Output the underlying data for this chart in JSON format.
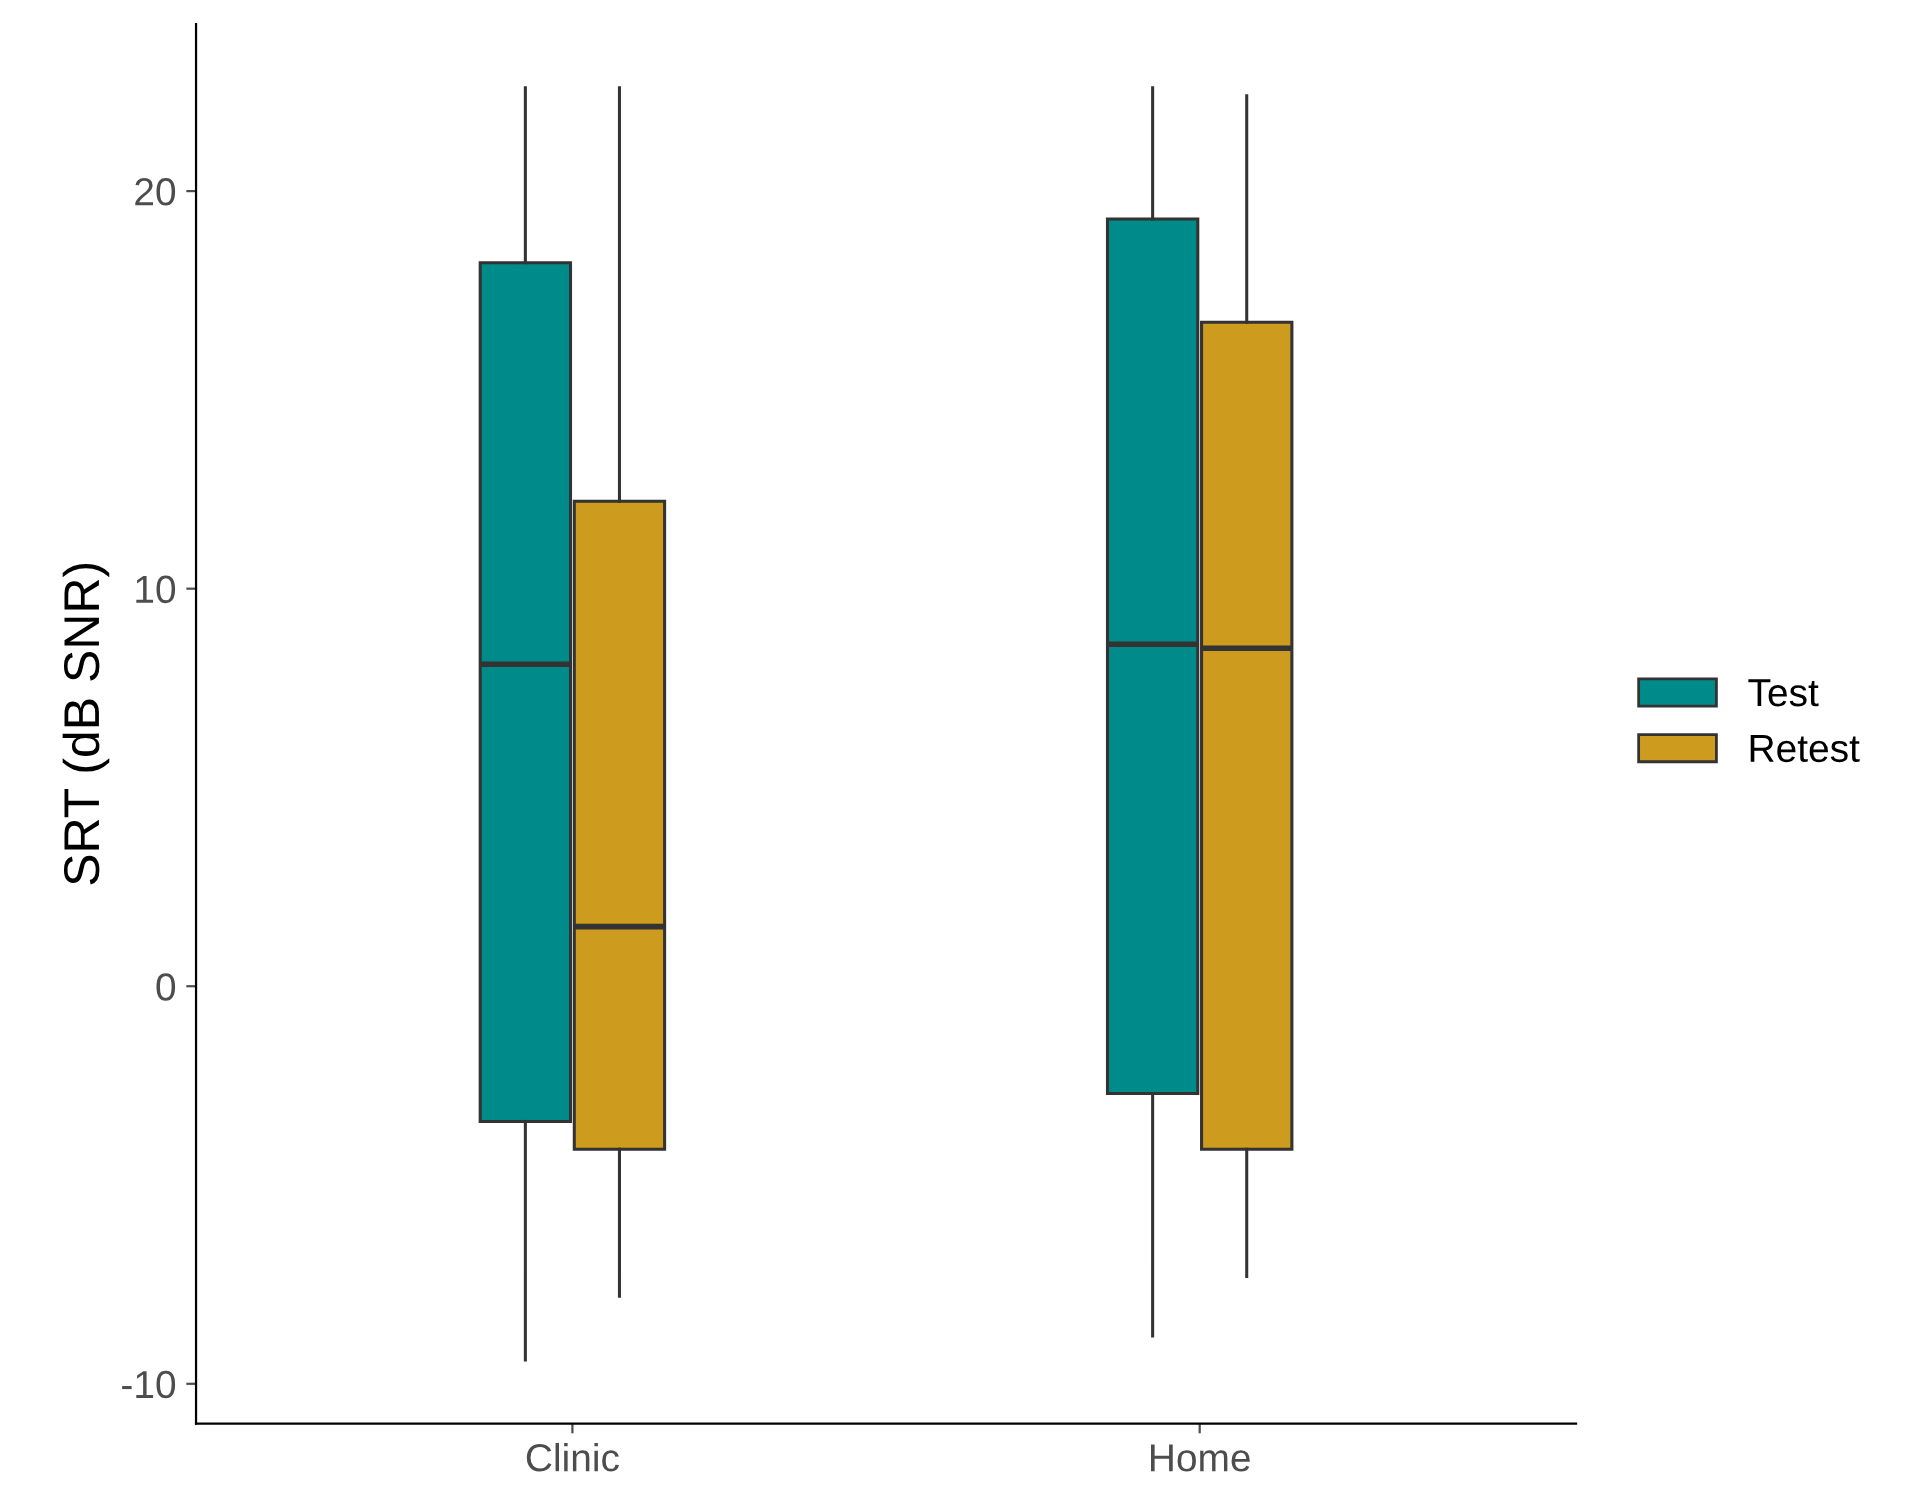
{
  "chart_data": {
    "type": "box",
    "ylabel": "SRT (dB SNR)",
    "categories": [
      "Clinic",
      "Home"
    ],
    "series": [
      {
        "name": "Test",
        "color": "#008b8b",
        "boxes": [
          {
            "low": -9.4,
            "q1": -3.4,
            "median": 8.1,
            "q3": 18.2,
            "high": 22.6
          },
          {
            "low": -8.8,
            "q1": -2.7,
            "median": 8.6,
            "q3": 19.3,
            "high": 22.6
          }
        ]
      },
      {
        "name": "Retest",
        "color": "#cd9b1d",
        "boxes": [
          {
            "low": -7.8,
            "q1": -4.1,
            "median": 1.5,
            "q3": 12.2,
            "high": 22.6
          },
          {
            "low": -7.3,
            "q1": -4.1,
            "median": 8.5,
            "q3": 16.7,
            "high": 22.4
          }
        ]
      }
    ],
    "ylim": [
      -11,
      24.2
    ],
    "yticks": [
      -10,
      0,
      10,
      20
    ],
    "grid": false,
    "legend": "right"
  }
}
